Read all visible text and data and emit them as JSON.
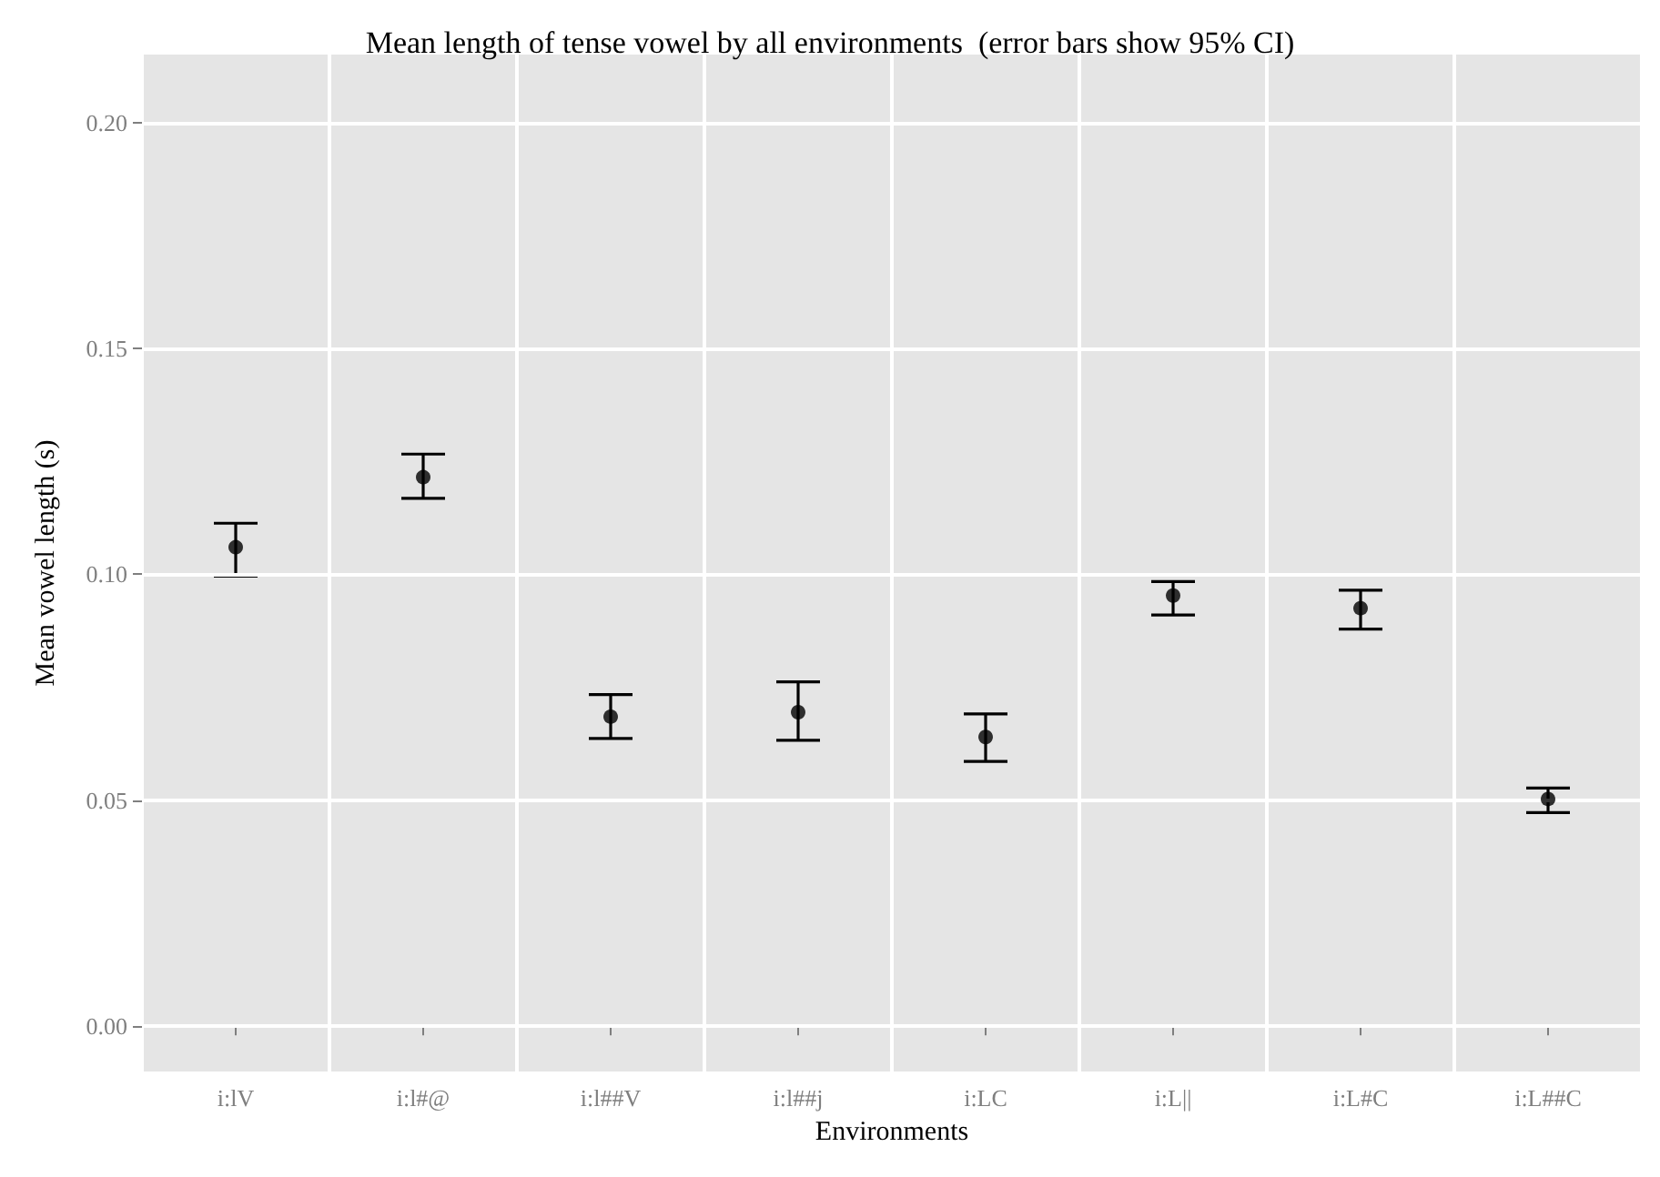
{
  "chart_data": {
    "type": "scatter",
    "title": "Mean length of tense vowel by all environments  (error bars show 95% CI)",
    "xlabel": "Environments",
    "ylabel": "Mean vowel length (s)",
    "categories": [
      "i:lV",
      "i:l#@",
      "i:l##V",
      "i:l##j",
      "i:LC",
      "i:L||",
      "i:L#C",
      "i:L##C"
    ],
    "values": [
      0.106,
      0.1215,
      0.0685,
      0.0695,
      0.064,
      0.0953,
      0.0925,
      0.0503
    ],
    "errors": [
      [
        0.0996,
        0.1113
      ],
      [
        0.1168,
        0.1266
      ],
      [
        0.0637,
        0.0734
      ],
      [
        0.0633,
        0.0762
      ],
      [
        0.0586,
        0.0691
      ],
      [
        0.091,
        0.0984
      ],
      [
        0.0879,
        0.0965
      ],
      [
        0.0473,
        0.0527
      ]
    ],
    "color": "#000000",
    "ylim": [
      -0.01,
      0.215
    ],
    "yticks": [
      {
        "value": 0,
        "label": "0.00"
      },
      {
        "value": 0.05,
        "label": "0.05"
      },
      {
        "value": 0.1,
        "label": "0.10"
      },
      {
        "value": 0.15,
        "label": "0.15"
      },
      {
        "value": 0.2,
        "label": "0.20"
      }
    ],
    "grid": true,
    "marker": "circle"
  }
}
